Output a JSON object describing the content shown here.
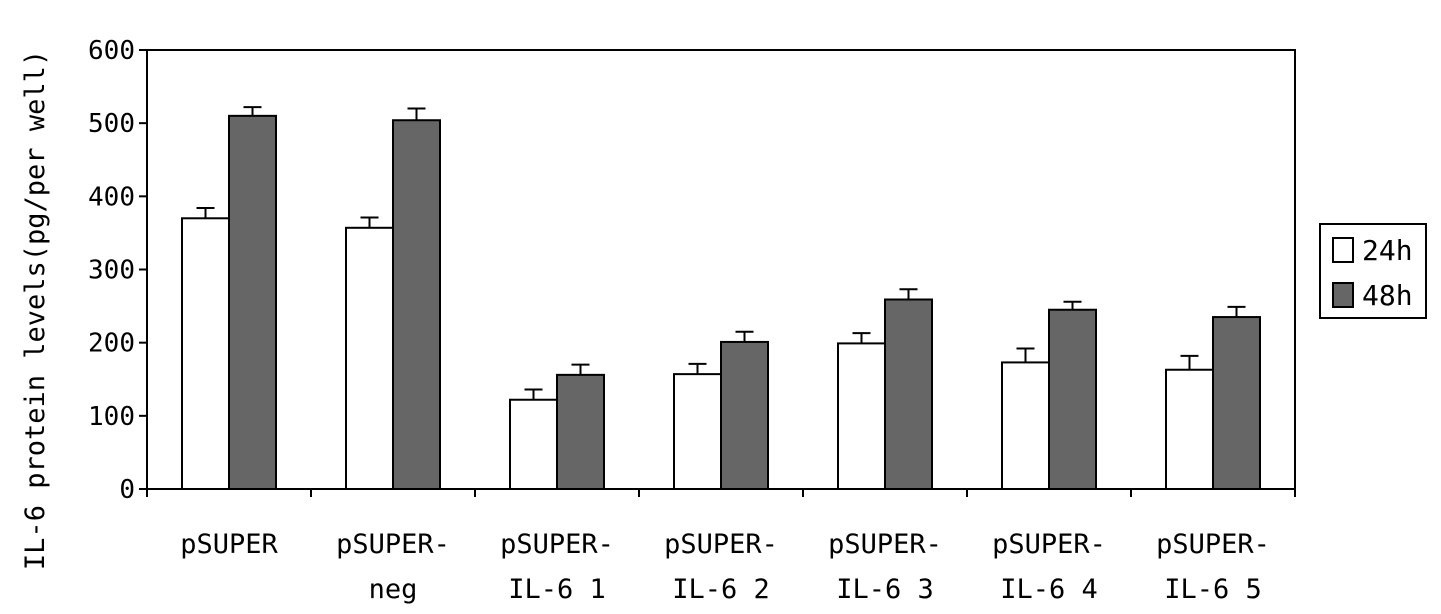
{
  "chart_data": {
    "type": "bar",
    "title": "",
    "xlabel": "",
    "ylabel": "IL-6 protein levels(pg/per well)",
    "ylim": [
      0,
      600
    ],
    "yticks": [
      0,
      100,
      200,
      300,
      400,
      500,
      600
    ],
    "grid": false,
    "legend_position": "right",
    "categories": [
      [
        "pSUPER"
      ],
      [
        "pSUPER-",
        "neg"
      ],
      [
        "pSUPER-",
        "IL-6 1"
      ],
      [
        "pSUPER-",
        "IL-6 2"
      ],
      [
        "pSUPER-",
        "IL-6 3"
      ],
      [
        "pSUPER-",
        "IL-6 4"
      ],
      [
        "pSUPER-",
        "IL-6 5"
      ]
    ],
    "series": [
      {
        "name": "24h",
        "color": "#ffffff",
        "values": [
          370,
          357,
          122,
          157,
          199,
          173,
          163
        ],
        "errors": [
          14,
          14,
          14,
          14,
          14,
          19,
          19
        ]
      },
      {
        "name": "48h",
        "color": "#666666",
        "values": [
          510,
          504,
          156,
          201,
          259,
          245,
          235
        ],
        "errors": [
          12,
          16,
          14,
          14,
          14,
          11,
          14
        ]
      }
    ]
  }
}
